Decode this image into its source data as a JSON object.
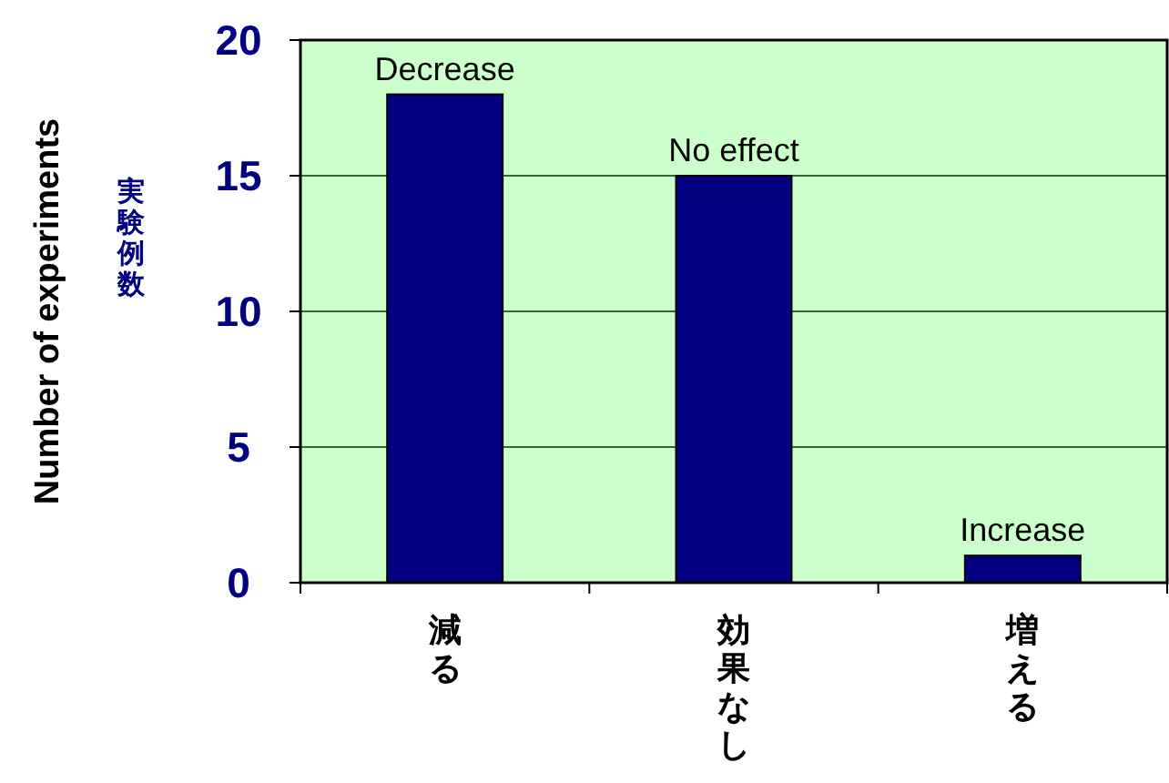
{
  "chart_data": {
    "type": "bar",
    "categories": [
      "減る",
      "効果なし",
      "増える"
    ],
    "values": [
      18,
      15,
      1
    ],
    "color": "#000080",
    "ylabel": "Number of experiments",
    "ylim": [
      0,
      20
    ],
    "yticks": [
      0,
      5,
      10,
      15,
      20
    ],
    "grid": "y",
    "annotations": [
      {
        "text": "実験例数"
      },
      {
        "text": "Decrease",
        "x": "減る",
        "y": 18
      },
      {
        "text": "No effect",
        "x": "効果なし",
        "y": 15
      },
      {
        "text": "Increase",
        "x": "増える",
        "y": 1
      }
    ]
  }
}
